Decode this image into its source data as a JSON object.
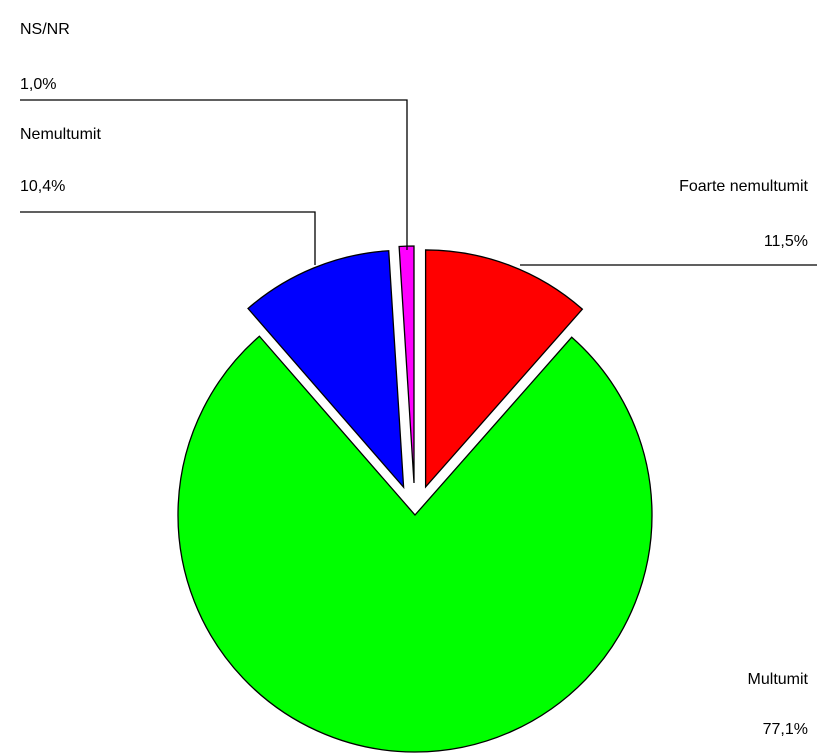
{
  "chart_data": {
    "type": "pie",
    "categories": [
      "Foarte nemultumit",
      "Multumit",
      "Nemultumit",
      "NS/NR"
    ],
    "values": [
      11.5,
      77.1,
      10.4,
      1.0
    ],
    "value_labels": [
      "11,5%",
      "77,1%",
      "10,4%",
      "1,0%"
    ],
    "colors": [
      "#ff0000",
      "#00ff00",
      "#0000ff",
      "#ff00ff"
    ]
  }
}
